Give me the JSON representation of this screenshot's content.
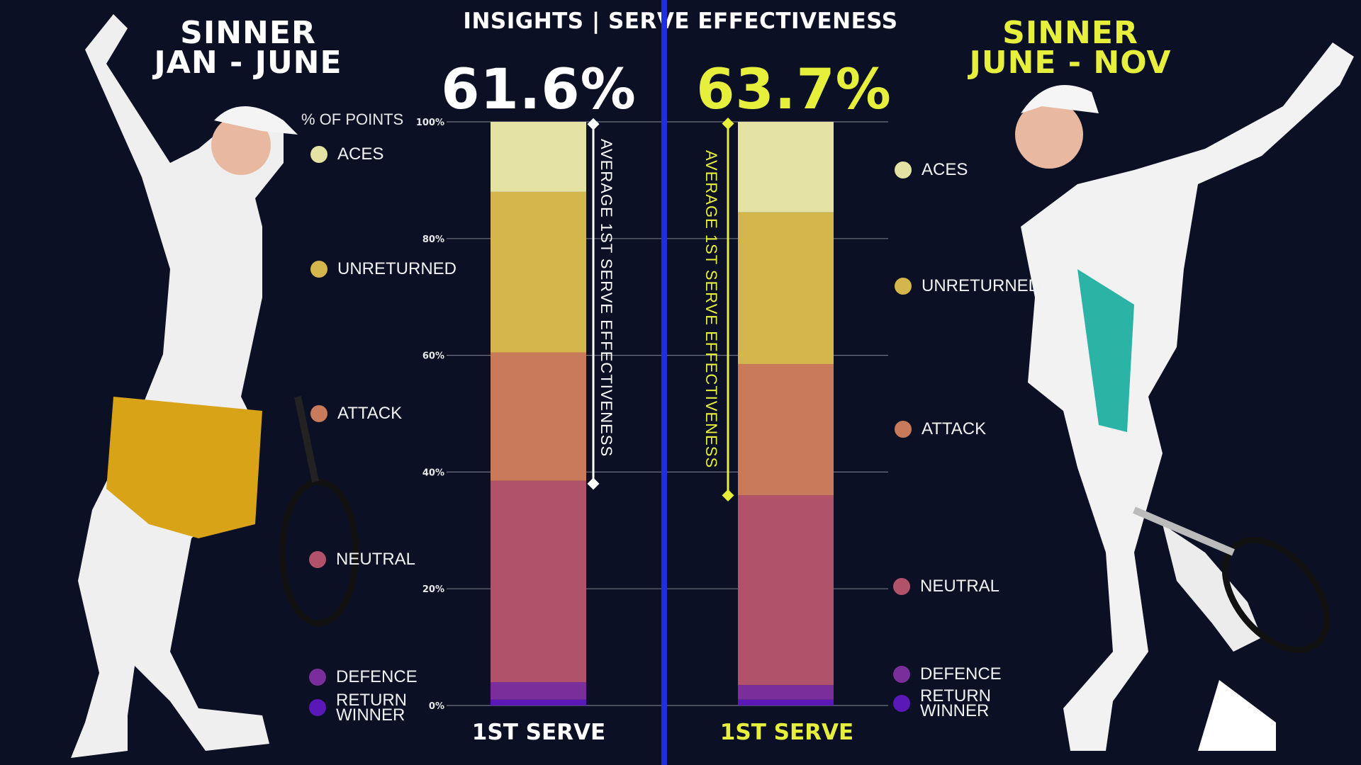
{
  "header": {
    "title": "INSIGHTS | SERVE EFFECTIVENESS",
    "left_period_line1": "SINNER",
    "left_period_line2": "JAN - JUNE",
    "right_period_line1": "SINNER",
    "right_period_line2": "JUNE - NOV",
    "left_value": "61.6%",
    "right_value": "63.7%"
  },
  "colors": {
    "background": "#0b1024",
    "accent_yellow": "#e6f03c",
    "divider": "#1f2ee0",
    "aces": "#e5e3a3",
    "unreturned": "#d4b64c",
    "attack": "#c97a5a",
    "neutral": "#b0526a",
    "defence": "#7a2e9c",
    "return_winner": "#5b18b8"
  },
  "labels": {
    "axis_caption": "% OF POINTS",
    "bar_label_left": "1ST SERVE",
    "bar_label_right": "1ST SERVE",
    "avg_label": "AVERAGE 1ST SERVE EFFECTIVENESS"
  },
  "chart_data": {
    "type": "bar",
    "stacked": true,
    "title": "INSIGHTS | SERVE EFFECTIVENESS",
    "ylabel": "% OF POINTS",
    "ylim": [
      0,
      100
    ],
    "yticks": [
      "0%",
      "20%",
      "40%",
      "60%",
      "80%",
      "100%"
    ],
    "grid": true,
    "categories": [
      "1ST SERVE",
      "1ST SERVE"
    ],
    "groups": [
      "JAN - JUNE",
      "JUNE - NOV"
    ],
    "series": [
      {
        "name": "RETURN WINNER",
        "values": [
          1,
          1
        ]
      },
      {
        "name": "DEFENCE",
        "values": [
          3,
          2.5
        ]
      },
      {
        "name": "NEUTRAL",
        "values": [
          34.5,
          32.5
        ]
      },
      {
        "name": "ATTACK",
        "values": [
          22,
          22.5
        ]
      },
      {
        "name": "UNRETURNED",
        "values": [
          27.5,
          26
        ]
      },
      {
        "name": "ACES",
        "values": [
          12,
          15.5
        ]
      }
    ],
    "average_lines": [
      61.6,
      63.7
    ]
  }
}
